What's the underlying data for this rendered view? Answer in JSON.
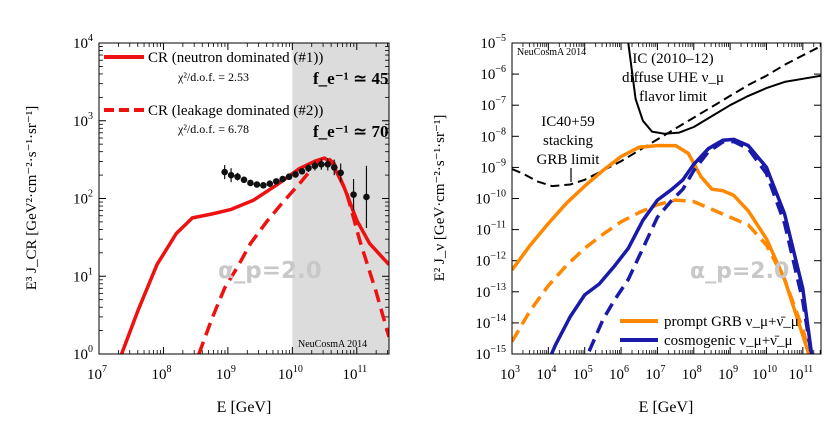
{
  "chart_data": [
    {
      "type": "line",
      "xlabel": "E [GeV]",
      "ylabel": "E³ J_CR [GeV²·cm⁻²·s⁻¹·sr⁻¹]",
      "xscale": "log",
      "yscale": "log",
      "xlim_exp": [
        7,
        11.5
      ],
      "ylim_exp": [
        0,
        4
      ],
      "x_tick_exps": [
        7,
        8,
        9,
        10,
        11
      ],
      "y_tick_exps": [
        0,
        1,
        2,
        3,
        4
      ],
      "shaded_region_exp": [
        10,
        11.5
      ],
      "watermark": "NeuCosmA 2014",
      "alpha_label": "α_p=2.0",
      "series": [
        {
          "name": "CR (neutron dominated (#1))",
          "chi2": "χ²/d.o.f. = 2.53",
          "fe": "f_e⁻¹ ≃ 45",
          "color": "#ee1111",
          "dash": "solid",
          "points": [
            [
              7.35,
              0.0
            ],
            [
              7.6,
              0.55
            ],
            [
              7.9,
              1.15
            ],
            [
              8.2,
              1.55
            ],
            [
              8.45,
              1.75
            ],
            [
              8.75,
              1.8
            ],
            [
              9.05,
              1.86
            ],
            [
              9.4,
              1.98
            ],
            [
              9.75,
              2.17
            ],
            [
              10.1,
              2.38
            ],
            [
              10.35,
              2.48
            ],
            [
              10.5,
              2.52
            ],
            [
              10.62,
              2.45
            ],
            [
              10.8,
              2.15
            ],
            [
              11.0,
              1.72
            ],
            [
              11.2,
              1.42
            ],
            [
              11.5,
              1.15
            ]
          ]
        },
        {
          "name": "CR (leakage dominated (#2))",
          "chi2": "χ²/d.o.f. = 6.78",
          "fe": "f_e⁻¹ ≃ 70",
          "color": "#ee1111",
          "dash": "dashed",
          "points": [
            [
              8.55,
              0.0
            ],
            [
              8.75,
              0.45
            ],
            [
              8.95,
              0.85
            ],
            [
              9.15,
              1.12
            ],
            [
              9.35,
              1.42
            ],
            [
              9.6,
              1.7
            ],
            [
              9.85,
              1.95
            ],
            [
              10.1,
              2.18
            ],
            [
              10.3,
              2.38
            ],
            [
              10.45,
              2.5
            ],
            [
              10.55,
              2.52
            ],
            [
              10.65,
              2.45
            ],
            [
              10.85,
              2.05
            ],
            [
              11.05,
              1.45
            ],
            [
              11.3,
              0.8
            ],
            [
              11.5,
              0.22
            ]
          ]
        }
      ],
      "data_points": {
        "name": "UHECR data",
        "color": "#111111",
        "points": [
          {
            "x": 8.95,
            "y": 2.34,
            "lo": 0.09,
            "hi": 0.09
          },
          {
            "x": 9.05,
            "y": 2.3,
            "lo": 0.09,
            "hi": 0.09
          },
          {
            "x": 9.15,
            "y": 2.28,
            "lo": 0.05,
            "hi": 0.05
          },
          {
            "x": 9.25,
            "y": 2.24,
            "lo": 0.04,
            "hi": 0.04
          },
          {
            "x": 9.35,
            "y": 2.2,
            "lo": 0.03,
            "hi": 0.03
          },
          {
            "x": 9.45,
            "y": 2.18,
            "lo": 0.03,
            "hi": 0.03
          },
          {
            "x": 9.55,
            "y": 2.17,
            "lo": 0.03,
            "hi": 0.03
          },
          {
            "x": 9.65,
            "y": 2.19,
            "lo": 0.03,
            "hi": 0.03
          },
          {
            "x": 9.75,
            "y": 2.22,
            "lo": 0.03,
            "hi": 0.03
          },
          {
            "x": 9.85,
            "y": 2.25,
            "lo": 0.03,
            "hi": 0.03
          },
          {
            "x": 9.95,
            "y": 2.28,
            "lo": 0.03,
            "hi": 0.03
          },
          {
            "x": 10.05,
            "y": 2.31,
            "lo": 0.04,
            "hi": 0.04
          },
          {
            "x": 10.15,
            "y": 2.35,
            "lo": 0.04,
            "hi": 0.04
          },
          {
            "x": 10.25,
            "y": 2.39,
            "lo": 0.05,
            "hi": 0.05
          },
          {
            "x": 10.35,
            "y": 2.42,
            "lo": 0.06,
            "hi": 0.06
          },
          {
            "x": 10.45,
            "y": 2.44,
            "lo": 0.07,
            "hi": 0.07
          },
          {
            "x": 10.55,
            "y": 2.44,
            "lo": 0.08,
            "hi": 0.08
          },
          {
            "x": 10.65,
            "y": 2.4,
            "lo": 0.1,
            "hi": 0.1
          },
          {
            "x": 10.75,
            "y": 2.33,
            "lo": 0.12,
            "hi": 0.12
          },
          {
            "x": 10.95,
            "y": 2.05,
            "lo": 0.2,
            "hi": 0.2
          },
          {
            "x": 11.15,
            "y": 2.02,
            "lo": 0.4,
            "hi": 0.4
          }
        ]
      }
    },
    {
      "type": "line",
      "xlabel": "E [GeV]",
      "ylabel": "E² J_ν [GeV·cm⁻²·s⁻¹·sr⁻¹]",
      "xscale": "log",
      "yscale": "log",
      "xlim_exp": [
        3,
        11.5
      ],
      "ylim_exp": [
        -15,
        -5
      ],
      "x_tick_exps": [
        3,
        4,
        5,
        6,
        7,
        8,
        9,
        10,
        11
      ],
      "y_tick_exps": [
        -15,
        -14,
        -13,
        -12,
        -11,
        -10,
        -9,
        -8,
        -7,
        -6,
        -5
      ],
      "watermark": "NeuCosmA 2014",
      "alpha_label": "α_p=2.0",
      "annotations": {
        "ic_limit": [
          "IC (2010–12)",
          "diffuse UHE ν_μ",
          "flavor limit"
        ],
        "stacking_limit": [
          "IC40+59",
          "stacking",
          "GRB limit"
        ]
      },
      "series": [
        {
          "name": "IC (2010–12) diffuse UHE ν_μ flavor limit",
          "color": "#000000",
          "dash": "solid",
          "width": 2,
          "points": [
            [
              6.2,
              -5.0
            ],
            [
              6.4,
              -6.8
            ],
            [
              6.6,
              -7.5
            ],
            [
              6.85,
              -7.85
            ],
            [
              7.2,
              -7.92
            ],
            [
              7.6,
              -7.88
            ],
            [
              8.0,
              -7.7
            ],
            [
              8.5,
              -7.35
            ],
            [
              9.0,
              -7.0
            ],
            [
              9.5,
              -6.7
            ],
            [
              10.0,
              -6.45
            ],
            [
              10.5,
              -6.25
            ],
            [
              11.0,
              -6.15
            ],
            [
              11.5,
              -6.05
            ]
          ]
        },
        {
          "name": "IC40+59 stacking GRB limit",
          "color": "#000000",
          "dash": "dashed",
          "width": 2,
          "points": [
            [
              3.0,
              -9.05
            ],
            [
              3.3,
              -9.2
            ],
            [
              3.7,
              -9.45
            ],
            [
              4.1,
              -9.6
            ],
            [
              4.6,
              -9.55
            ],
            [
              5.0,
              -9.4
            ],
            [
              5.5,
              -9.1
            ],
            [
              6.0,
              -8.8
            ],
            [
              6.5,
              -8.45
            ],
            [
              7.0,
              -8.1
            ],
            [
              7.5,
              -7.75
            ],
            [
              8.0,
              -7.4
            ],
            [
              8.5,
              -7.05
            ],
            [
              9.0,
              -6.7
            ],
            [
              9.5,
              -6.35
            ],
            [
              10.0,
              -6.05
            ],
            [
              10.5,
              -5.7
            ],
            [
              11.0,
              -5.4
            ],
            [
              11.5,
              -5.1
            ]
          ]
        },
        {
          "name": "prompt GRB ν_μ+ν̄_μ",
          "color": "#ff8800",
          "dash": "solid",
          "width": 3.5,
          "points": [
            [
              3.0,
              -12.3
            ],
            [
              3.5,
              -11.5
            ],
            [
              4.0,
              -10.8
            ],
            [
              4.5,
              -10.15
            ],
            [
              5.0,
              -9.6
            ],
            [
              5.5,
              -9.1
            ],
            [
              6.0,
              -8.65
            ],
            [
              6.5,
              -8.35
            ],
            [
              7.0,
              -8.3
            ],
            [
              7.5,
              -8.3
            ],
            [
              7.85,
              -8.55
            ],
            [
              8.2,
              -9.3
            ],
            [
              8.5,
              -9.7
            ],
            [
              8.8,
              -9.75
            ],
            [
              9.1,
              -9.9
            ],
            [
              9.5,
              -10.4
            ],
            [
              10.0,
              -11.3
            ],
            [
              10.5,
              -12.6
            ],
            [
              11.0,
              -14.4
            ],
            [
              11.3,
              -15.5
            ]
          ]
        },
        {
          "name": "prompt GRB dashed",
          "color": "#ff8800",
          "dash": "dashed",
          "width": 3.5,
          "points": [
            [
              3.0,
              -14.6
            ],
            [
              3.5,
              -13.6
            ],
            [
              4.0,
              -12.8
            ],
            [
              4.5,
              -12.15
            ],
            [
              5.0,
              -11.6
            ],
            [
              5.5,
              -11.15
            ],
            [
              6.0,
              -10.75
            ],
            [
              6.5,
              -10.45
            ],
            [
              7.0,
              -10.2
            ],
            [
              7.5,
              -10.05
            ],
            [
              8.0,
              -10.1
            ],
            [
              8.5,
              -10.35
            ],
            [
              9.0,
              -10.6
            ],
            [
              9.5,
              -10.85
            ],
            [
              10.0,
              -11.5
            ],
            [
              10.5,
              -12.6
            ],
            [
              11.0,
              -14.2
            ],
            [
              11.3,
              -15.5
            ]
          ]
        },
        {
          "name": "cosmogenic ν_μ+ν̄_μ",
          "color": "#1a1aa8",
          "dash": "solid",
          "width": 3.5,
          "points": [
            [
              3.9,
              -15.5
            ],
            [
              4.2,
              -14.7
            ],
            [
              4.6,
              -13.8
            ],
            [
              5.0,
              -13.1
            ],
            [
              5.4,
              -12.75
            ],
            [
              5.8,
              -12.2
            ],
            [
              6.2,
              -11.6
            ],
            [
              6.6,
              -10.7
            ],
            [
              7.0,
              -10.05
            ],
            [
              7.4,
              -9.7
            ],
            [
              7.7,
              -9.4
            ],
            [
              8.0,
              -8.9
            ],
            [
              8.4,
              -8.4
            ],
            [
              8.8,
              -8.13
            ],
            [
              9.1,
              -8.1
            ],
            [
              9.5,
              -8.3
            ],
            [
              10.0,
              -9.0
            ],
            [
              10.5,
              -10.5
            ],
            [
              11.0,
              -12.9
            ],
            [
              11.3,
              -15.5
            ]
          ]
        },
        {
          "name": "cosmogenic dashed",
          "color": "#1a1aa8",
          "dash": "dashed",
          "width": 3.5,
          "points": [
            [
              4.9,
              -15.5
            ],
            [
              5.2,
              -14.7
            ],
            [
              5.5,
              -13.9
            ],
            [
              5.8,
              -13.3
            ],
            [
              6.2,
              -12.6
            ],
            [
              6.6,
              -11.6
            ],
            [
              7.0,
              -10.6
            ],
            [
              7.4,
              -10.05
            ],
            [
              7.7,
              -9.7
            ],
            [
              8.0,
              -9.1
            ],
            [
              8.4,
              -8.5
            ],
            [
              8.8,
              -8.18
            ],
            [
              9.1,
              -8.17
            ],
            [
              9.5,
              -8.4
            ],
            [
              10.0,
              -9.2
            ],
            [
              10.5,
              -10.8
            ],
            [
              11.0,
              -13.3
            ],
            [
              11.3,
              -15.5
            ]
          ]
        }
      ],
      "legend": [
        {
          "label": "prompt GRB ν_μ+ν̄_μ",
          "color": "#ff8800"
        },
        {
          "label": "cosmogenic ν_μ+ν̄_μ",
          "color": "#1a1aa8"
        }
      ]
    }
  ]
}
